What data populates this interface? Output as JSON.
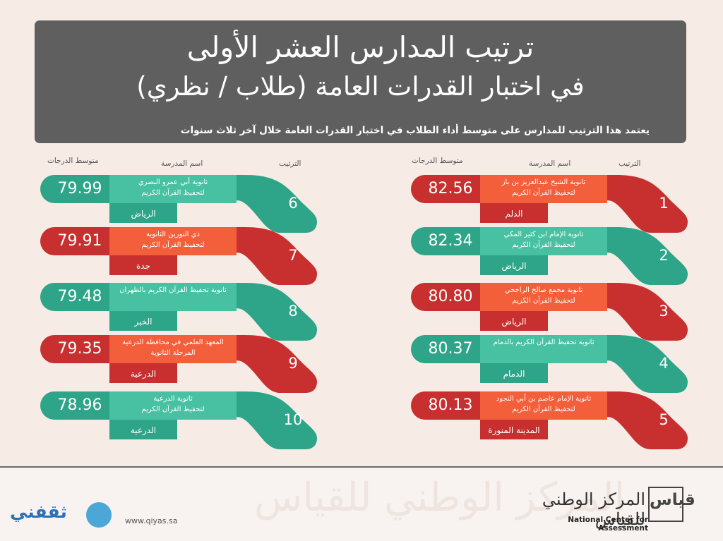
{
  "header": {
    "title_line1": "ترتيب المدارس العشر الأولى",
    "title_line2": "في اختبار القدرات العامة (طلاب / نظري)",
    "subtitle": "يعتمد هذا الترتيب للمدارس على متوسط أداء الطلاب في اختبار القدرات العامة خلال آخر ثلاث سنوات"
  },
  "columns": {
    "rank": "الترتيب",
    "school": "اسم المدرسة",
    "score": "متوسط الدرجات"
  },
  "colors": {
    "red_dark": "#c7302f",
    "red_light": "#f35e3b",
    "teal_dark": "#2ea588",
    "teal_light": "#47c1a1"
  },
  "schools": [
    {
      "rank": "1",
      "name": "ثانوية الشيخ عبدالعزيز بن باز\nلتحفيظ القرآن الكريم",
      "city": "الدلم",
      "score": "82.56",
      "color": "red"
    },
    {
      "rank": "2",
      "name": "ثانوية الإمام ابن كثير المكي\nلتحفيظ القرآن الكريم",
      "city": "الرياض",
      "score": "82.34",
      "color": "teal"
    },
    {
      "rank": "3",
      "name": "ثانوية مجمع صالح الراجحي\nلتحفيظ القرآن الكريم",
      "city": "الرياض",
      "score": "80.80",
      "color": "red"
    },
    {
      "rank": "4",
      "name": "ثانوية تحفيظ القرآن الكريم بالدمام",
      "city": "الدمام",
      "score": "80.37",
      "color": "teal"
    },
    {
      "rank": "5",
      "name": "ثانوية الإمام عاصم بن أبي النجود\nلتحفيظ القرآن الكريم",
      "city": "المدينة المنورة",
      "score": "80.13",
      "color": "red"
    },
    {
      "rank": "6",
      "name": "ثانوية أبي عمرو البصري\nلتحفيظ القرآن الكريم",
      "city": "الرياض",
      "score": "79.99",
      "color": "teal"
    },
    {
      "rank": "7",
      "name": "ذي النورين الثانوية\nلتحفيظ القرآن الكريم",
      "city": "جدة",
      "score": "79.91",
      "color": "red"
    },
    {
      "rank": "8",
      "name": "ثانوية تحفيظ القرآن الكريم بالظهران",
      "city": "الخبر",
      "score": "79.48",
      "color": "teal"
    },
    {
      "rank": "9",
      "name": "المعهد العلمي في محافظة الدرعية\nالمرحلة الثانوية",
      "city": "الدرعية",
      "score": "79.35",
      "color": "red"
    },
    {
      "rank": "10",
      "name": "ثانوية الدرعية\nلتحفيظ القرآن الكريم",
      "city": "الدرعية",
      "score": "78.96",
      "color": "teal"
    }
  ],
  "footer": {
    "org_name_ar": "المركز الوطني للقياس",
    "org_name_en": "National Center for Assessment",
    "logo_text": "قياس",
    "website": "www.qiyas.sa",
    "brand_left": "ثقفني",
    "background_text": "المركز الوطني للقياس"
  }
}
